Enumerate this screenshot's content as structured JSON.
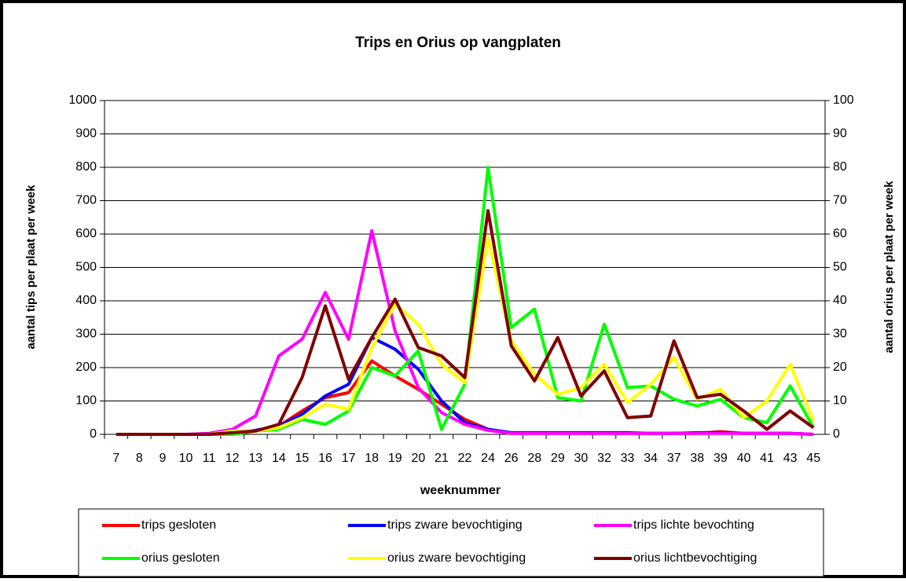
{
  "chart_data": {
    "type": "line",
    "title": "Trips en Orius op vangplaten",
    "x_label": "weeknummer",
    "y_label": "aantal tips per plaat per week",
    "y2_label": "aantal orius per plaat per week",
    "categories": [
      "7",
      "8",
      "9",
      "10",
      "11",
      "12",
      "13",
      "14",
      "15",
      "16",
      "17",
      "18",
      "19",
      "20",
      "21",
      "22",
      "24",
      "26",
      "28",
      "29",
      "30",
      "32",
      "33",
      "34",
      "37",
      "38",
      "39",
      "40",
      "41",
      "43",
      "45"
    ],
    "ylim": [
      0,
      1000
    ],
    "yticks": [
      0,
      100,
      200,
      300,
      400,
      500,
      600,
      700,
      800,
      900,
      1000
    ],
    "y2lim": [
      0,
      100
    ],
    "y2ticks": [
      0,
      10,
      20,
      30,
      40,
      50,
      60,
      70,
      80,
      90,
      100
    ],
    "grid": true,
    "legend": "bottom",
    "series": [
      {
        "name": "trips gesloten",
        "color": "#ff0000",
        "values": [
          0,
          0,
          0,
          0,
          0,
          2,
          10,
          25,
          70,
          110,
          125,
          220,
          175,
          135,
          90,
          45,
          15,
          3,
          3,
          3,
          3,
          3,
          3,
          3,
          3,
          3,
          8,
          3,
          3,
          3,
          0
        ]
      },
      {
        "name": "trips zware bevochtiging",
        "color": "#0000ff",
        "values": [
          0,
          0,
          0,
          0,
          0,
          3,
          12,
          25,
          60,
          115,
          150,
          290,
          255,
          195,
          100,
          35,
          15,
          5,
          5,
          5,
          5,
          5,
          5,
          3,
          3,
          5,
          5,
          3,
          3,
          3,
          0
        ]
      },
      {
        "name": "trips lichte bevochting",
        "color": "#ff00ff",
        "values": [
          0,
          0,
          0,
          0,
          3,
          15,
          55,
          235,
          285,
          425,
          285,
          610,
          310,
          140,
          65,
          30,
          12,
          3,
          3,
          3,
          3,
          3,
          3,
          3,
          3,
          3,
          3,
          3,
          3,
          3,
          0
        ]
      },
      {
        "name": "orius gesloten",
        "color": "#00ff00",
        "axis": "y2",
        "values": [
          0,
          0,
          0,
          0,
          0,
          0,
          1,
          1.5,
          4.5,
          3,
          7,
          20,
          17.5,
          25,
          1.5,
          15,
          80,
          32,
          37.5,
          11,
          10,
          33,
          14,
          14.5,
          10.5,
          8.5,
          10.5,
          5,
          3.5,
          14.5,
          2
        ]
      },
      {
        "name": "orius zware bevochtiging",
        "color": "#ffff00",
        "axis": "y2",
        "values": [
          0,
          0,
          0,
          0,
          0,
          1,
          1,
          2,
          5,
          9,
          7.5,
          26,
          39,
          33,
          21,
          15.5,
          59,
          28,
          18,
          12,
          14,
          21,
          9.5,
          15,
          23,
          10.5,
          13.5,
          5,
          10,
          21,
          4
        ]
      },
      {
        "name": "orius lichtbevochtiging",
        "color": "#800000",
        "axis": "y2",
        "values": [
          0,
          0,
          0,
          0,
          0,
          0.5,
          1,
          3,
          17,
          38.5,
          16.5,
          29,
          40.5,
          26,
          23.5,
          17,
          67,
          26.5,
          16,
          29,
          11.5,
          19,
          5,
          5.5,
          28,
          11,
          12,
          7,
          1.5,
          7,
          2
        ]
      }
    ]
  }
}
